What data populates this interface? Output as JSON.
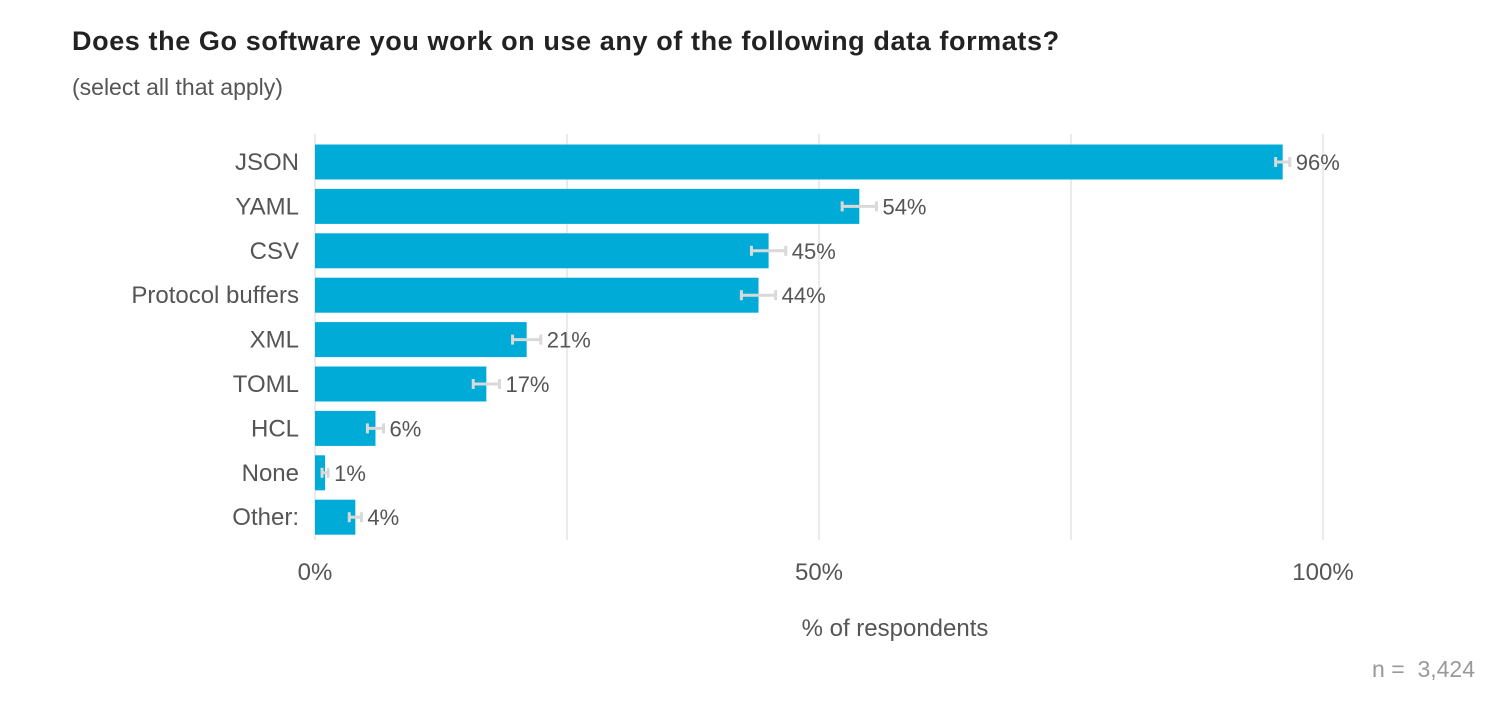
{
  "chart_data": {
    "type": "bar",
    "orientation": "horizontal",
    "title": "Does the Go software you work on use any of the following data formats?",
    "subtitle": "(select all that apply)",
    "categories": [
      "JSON",
      "YAML",
      "CSV",
      "Protocol buffers",
      "XML",
      "TOML",
      "HCL",
      "None",
      "Other:"
    ],
    "values": [
      96,
      54,
      45,
      44,
      21,
      17,
      6,
      1,
      4
    ],
    "value_labels": [
      "96%",
      "54%",
      "45%",
      "44%",
      "21%",
      "17%",
      "6%",
      "1%",
      "4%"
    ],
    "error_bars": [
      [
        95.3,
        96.7
      ],
      [
        52.3,
        55.7
      ],
      [
        43.3,
        46.7
      ],
      [
        42.3,
        45.7
      ],
      [
        19.6,
        22.4
      ],
      [
        15.7,
        18.3
      ],
      [
        5.2,
        6.8
      ],
      [
        0.7,
        1.3
      ],
      [
        3.4,
        4.6
      ]
    ],
    "xlabel": "% of respondents",
    "ylabel": "",
    "xlim": [
      0,
      100
    ],
    "x_ticks": [
      0,
      50,
      100
    ],
    "x_tick_labels": [
      "0%",
      "50%",
      "100%"
    ],
    "gridlines_at": [
      0,
      25,
      50,
      75,
      100
    ],
    "grid": true,
    "sample_size_label": "n =  3,424",
    "colors": {
      "bar": "#00ACD7",
      "error_bar": "#D9D9D9",
      "grid": "#EBEBEB",
      "label_text": "#555555",
      "title_text": "#222222",
      "note_text": "#999999"
    }
  }
}
